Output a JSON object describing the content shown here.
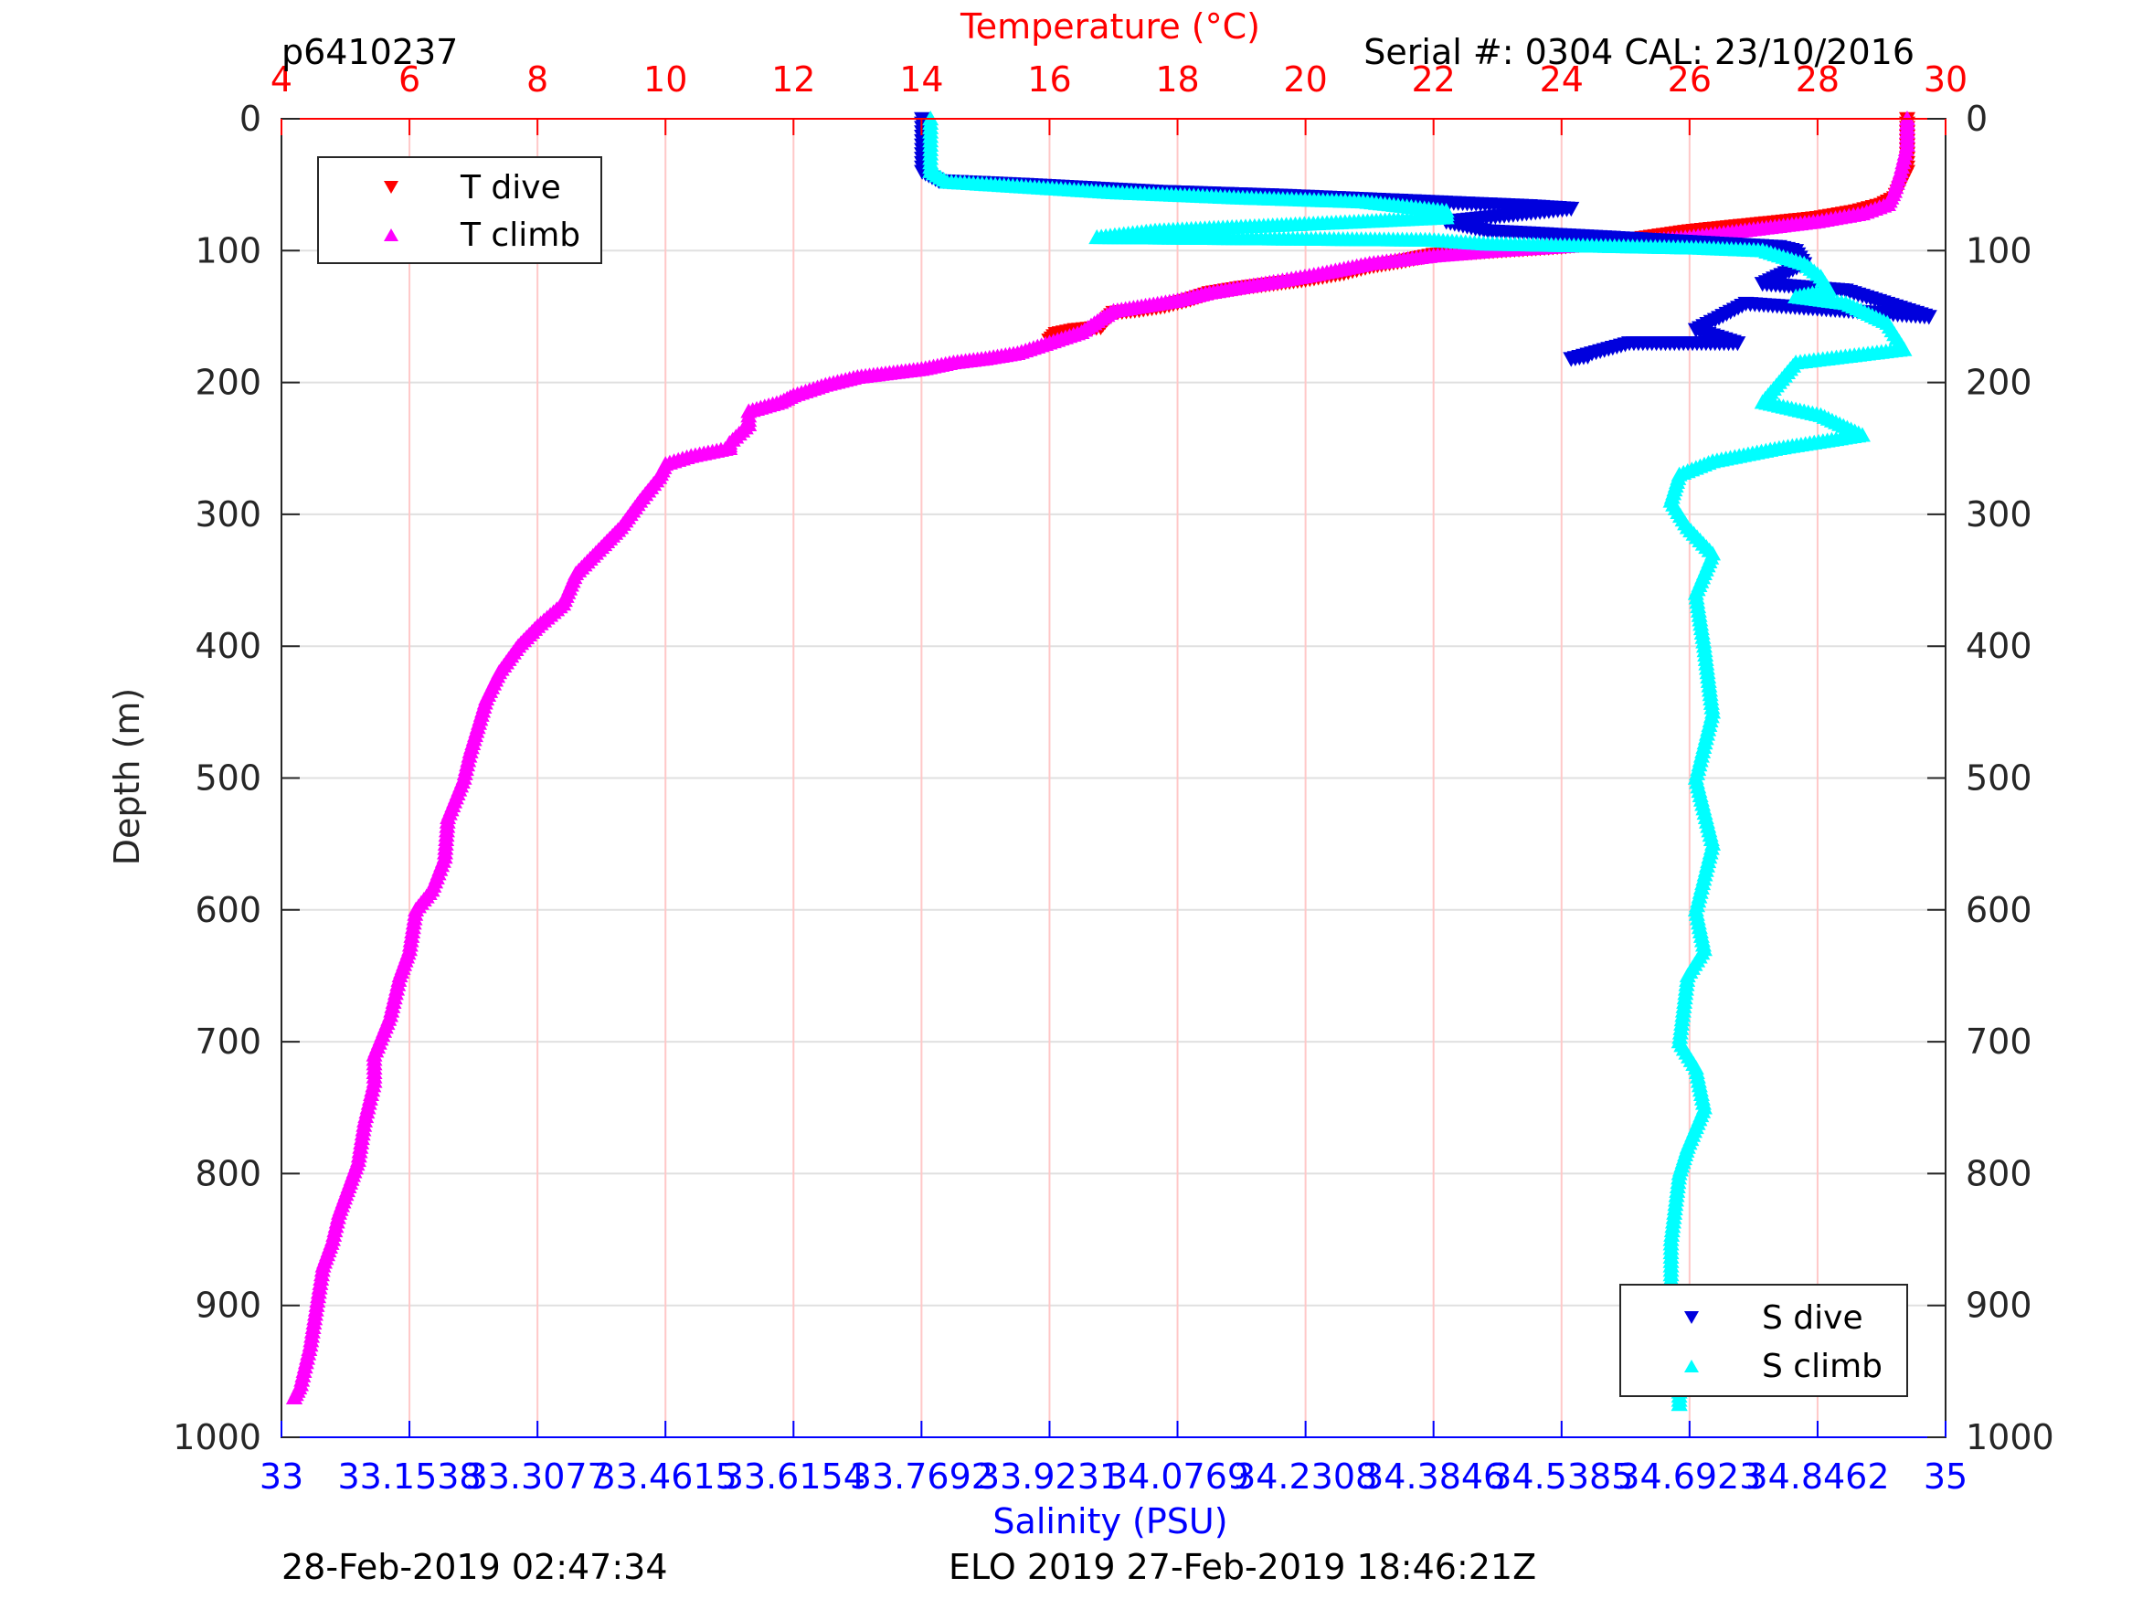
{
  "header": {
    "profile_id": "p6410237",
    "serial": "Serial #: 0304  CAL: 23/10/2016"
  },
  "footer": {
    "left_timestamp": "28-Feb-2019 02:47:34",
    "mission": "ELO 2019 27-Feb-2019 18:46:21Z"
  },
  "colors": {
    "temperature_axis": "#ff0000",
    "salinity_axis": "#0000ff",
    "t_dive": "#ff0000",
    "t_climb": "#ff00ff",
    "s_dive": "#0000dd",
    "s_climb": "#00ffff",
    "grid_depth": "#e0e0e0",
    "grid_temp": "#ffc8c8",
    "axis": "#262626"
  },
  "chart_data": {
    "type": "scatter",
    "y_axis": {
      "label": "Depth (m)",
      "range": [
        0,
        1000
      ],
      "reversed": true,
      "ticks": [
        0,
        100,
        200,
        300,
        400,
        500,
        600,
        700,
        800,
        900,
        1000
      ],
      "tick_labels": [
        "0",
        "100",
        "200",
        "300",
        "400",
        "500",
        "600",
        "700",
        "800",
        "900",
        "1000"
      ],
      "mirrored_right": true
    },
    "x_top": {
      "label": "Temperature (°C)",
      "range": [
        4,
        30
      ],
      "ticks": [
        4,
        6,
        8,
        10,
        12,
        14,
        16,
        18,
        20,
        22,
        24,
        26,
        28,
        30
      ],
      "tick_labels": [
        "4",
        "6",
        "8",
        "10",
        "12",
        "14",
        "16",
        "18",
        "20",
        "22",
        "24",
        "26",
        "28",
        "30"
      ]
    },
    "x_bottom": {
      "label": "Salinity (PSU)",
      "range": [
        33,
        35
      ],
      "ticks": [
        33,
        33.1538,
        33.3077,
        33.4615,
        33.6154,
        33.7692,
        33.9231,
        34.0769,
        34.2308,
        34.3846,
        34.5385,
        34.6923,
        34.8462,
        35
      ],
      "tick_labels": [
        "33",
        "33.1538",
        "33.3077",
        "33.4615",
        "33.6154",
        "33.7692",
        "33.9231",
        "34.0769",
        "34.2308",
        "34.3846",
        "34.5385",
        "34.6923",
        "34.8462",
        "35"
      ]
    },
    "grid": true,
    "legends": [
      {
        "placement": "top-left",
        "entries": [
          "T dive",
          "T climb"
        ]
      },
      {
        "placement": "bottom-right",
        "entries": [
          "S dive",
          "S climb"
        ]
      }
    ],
    "series": [
      {
        "name": "T dive",
        "axis": "temperature",
        "marker": "triangle-down",
        "points": [
          [
            29.4,
            0
          ],
          [
            29.4,
            10
          ],
          [
            29.4,
            20
          ],
          [
            29.4,
            30
          ],
          [
            29.4,
            40
          ],
          [
            29.3,
            50
          ],
          [
            29.2,
            60
          ],
          [
            29.0,
            65
          ],
          [
            28.6,
            70
          ],
          [
            28.0,
            75
          ],
          [
            27.0,
            80
          ],
          [
            26.0,
            85
          ],
          [
            25.0,
            92
          ],
          [
            24.0,
            97
          ],
          [
            23.0,
            100
          ],
          [
            22.0,
            103
          ],
          [
            21.5,
            108
          ],
          [
            21.0,
            112
          ],
          [
            20.6,
            117
          ],
          [
            20.0,
            122
          ],
          [
            19.5,
            125
          ],
          [
            19.0,
            128
          ],
          [
            18.5,
            132
          ],
          [
            18.2,
            137
          ],
          [
            17.8,
            142
          ],
          [
            17.4,
            145
          ],
          [
            17.0,
            147
          ],
          [
            16.9,
            152
          ],
          [
            16.8,
            158
          ],
          [
            16.4,
            160
          ],
          [
            16.1,
            163
          ],
          [
            16.0,
            168
          ]
        ]
      },
      {
        "name": "T climb",
        "axis": "temperature",
        "marker": "triangle-up",
        "points": [
          [
            29.4,
            0
          ],
          [
            29.4,
            20
          ],
          [
            29.3,
            40
          ],
          [
            29.2,
            55
          ],
          [
            29.1,
            65
          ],
          [
            28.7,
            72
          ],
          [
            28.0,
            78
          ],
          [
            27.0,
            84
          ],
          [
            26.0,
            90
          ],
          [
            25.0,
            94
          ],
          [
            24.0,
            97
          ],
          [
            23.0,
            100
          ],
          [
            22.0,
            104
          ],
          [
            21.0,
            110
          ],
          [
            20.2,
            118
          ],
          [
            19.5,
            124
          ],
          [
            19.0,
            128
          ],
          [
            18.5,
            132
          ],
          [
            18.0,
            138
          ],
          [
            17.5,
            142
          ],
          [
            17.0,
            146
          ],
          [
            16.8,
            152
          ],
          [
            16.5,
            162
          ],
          [
            16.0,
            170
          ],
          [
            15.5,
            178
          ],
          [
            15.0,
            182
          ],
          [
            14.5,
            185
          ],
          [
            14.0,
            190
          ],
          [
            13.5,
            193
          ],
          [
            13.0,
            196
          ],
          [
            12.5,
            202
          ],
          [
            12.0,
            210
          ],
          [
            11.8,
            215
          ],
          [
            11.3,
            222
          ],
          [
            11.3,
            232
          ],
          [
            11.0,
            246
          ],
          [
            11.0,
            250
          ],
          [
            10.4,
            256
          ],
          [
            10.0,
            262
          ],
          [
            9.9,
            272
          ],
          [
            9.6,
            290
          ],
          [
            9.3,
            310
          ],
          [
            9.0,
            325
          ],
          [
            8.6,
            345
          ],
          [
            8.4,
            368
          ],
          [
            8.0,
            385
          ],
          [
            7.7,
            400
          ],
          [
            7.4,
            420
          ],
          [
            7.2,
            440
          ],
          [
            6.95,
            480
          ],
          [
            6.85,
            500
          ],
          [
            6.6,
            530
          ],
          [
            6.55,
            560
          ],
          [
            6.35,
            585
          ],
          [
            6.1,
            600
          ],
          [
            6.0,
            630
          ],
          [
            5.85,
            650
          ],
          [
            5.7,
            680
          ],
          [
            5.45,
            710
          ],
          [
            5.45,
            730
          ],
          [
            5.3,
            760
          ],
          [
            5.2,
            790
          ],
          [
            5.05,
            810
          ],
          [
            4.9,
            830
          ],
          [
            4.8,
            850
          ],
          [
            4.65,
            870
          ],
          [
            4.55,
            900
          ],
          [
            4.45,
            930
          ],
          [
            4.3,
            960
          ],
          [
            4.2,
            970
          ]
        ]
      },
      {
        "name": "S dive",
        "axis": "salinity",
        "marker": "triangle-down",
        "points": [
          [
            33.77,
            0
          ],
          [
            33.77,
            20
          ],
          [
            33.77,
            40
          ],
          [
            33.79,
            47
          ],
          [
            33.9,
            50
          ],
          [
            34.05,
            55
          ],
          [
            34.2,
            58
          ],
          [
            34.35,
            62
          ],
          [
            34.5,
            66
          ],
          [
            34.55,
            68
          ],
          [
            34.4,
            78
          ],
          [
            34.45,
            85
          ],
          [
            34.6,
            90
          ],
          [
            34.8,
            97
          ],
          [
            34.82,
            100
          ],
          [
            34.83,
            110
          ],
          [
            34.78,
            125
          ],
          [
            34.88,
            130
          ],
          [
            34.98,
            150
          ],
          [
            34.76,
            140
          ],
          [
            34.7,
            160
          ],
          [
            34.75,
            170
          ],
          [
            34.62,
            170
          ],
          [
            34.55,
            182
          ],
          [
            34.57,
            180
          ]
        ]
      },
      {
        "name": "S climb",
        "axis": "salinity",
        "marker": "triangle-up",
        "points": [
          [
            33.78,
            0
          ],
          [
            33.78,
            20
          ],
          [
            33.78,
            40
          ],
          [
            33.8,
            48
          ],
          [
            33.9,
            52
          ],
          [
            34.0,
            56
          ],
          [
            34.15,
            60
          ],
          [
            34.3,
            63
          ],
          [
            34.4,
            70
          ],
          [
            34.4,
            75
          ],
          [
            34.3,
            78
          ],
          [
            34.05,
            85
          ],
          [
            33.98,
            90
          ],
          [
            34.38,
            92
          ],
          [
            34.45,
            95
          ],
          [
            34.7,
            98
          ],
          [
            34.78,
            100
          ],
          [
            34.83,
            110
          ],
          [
            34.85,
            120
          ],
          [
            34.86,
            130
          ],
          [
            34.82,
            135
          ],
          [
            34.88,
            140
          ],
          [
            34.93,
            155
          ],
          [
            34.95,
            175
          ],
          [
            34.82,
            185
          ],
          [
            34.8,
            200
          ],
          [
            34.78,
            215
          ],
          [
            34.85,
            225
          ],
          [
            34.9,
            240
          ],
          [
            34.8,
            250
          ],
          [
            34.72,
            260
          ],
          [
            34.68,
            270
          ],
          [
            34.67,
            290
          ],
          [
            34.69,
            310
          ],
          [
            34.72,
            330
          ],
          [
            34.7,
            360
          ],
          [
            34.71,
            400
          ],
          [
            34.72,
            450
          ],
          [
            34.7,
            500
          ],
          [
            34.72,
            550
          ],
          [
            34.7,
            600
          ],
          [
            34.71,
            630
          ],
          [
            34.69,
            650
          ],
          [
            34.68,
            700
          ],
          [
            34.7,
            720
          ],
          [
            34.71,
            750
          ],
          [
            34.69,
            780
          ],
          [
            34.68,
            800
          ],
          [
            34.67,
            850
          ],
          [
            34.67,
            900
          ],
          [
            34.67,
            920
          ],
          [
            34.68,
            950
          ],
          [
            34.68,
            975
          ]
        ]
      }
    ]
  }
}
